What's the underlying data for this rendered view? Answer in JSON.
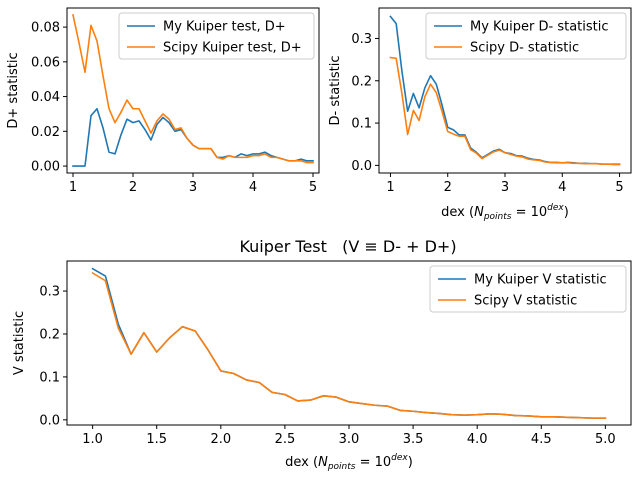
{
  "chart_data": [
    {
      "type": "line",
      "title": "",
      "xlabel": "",
      "ylabel": "D+ statistic",
      "xlim": [
        0.9,
        5.1
      ],
      "ylim": [
        -0.004,
        0.091
      ],
      "xticks": [
        1,
        2,
        3,
        4,
        5
      ],
      "xtick_labels": [
        "1",
        "2",
        "3",
        "4",
        "5"
      ],
      "yticks": [
        0.0,
        0.02,
        0.04,
        0.06,
        0.08
      ],
      "ytick_labels": [
        "0.00",
        "0.02",
        "0.04",
        "0.06",
        "0.08"
      ],
      "legend": "top-right",
      "grid": false,
      "x": [
        1.0,
        1.1,
        1.2,
        1.3,
        1.4,
        1.5,
        1.6,
        1.7,
        1.8,
        1.9,
        2.0,
        2.1,
        2.2,
        2.3,
        2.4,
        2.5,
        2.6,
        2.7,
        2.8,
        2.9,
        3.0,
        3.1,
        3.2,
        3.3,
        3.4,
        3.5,
        3.6,
        3.7,
        3.8,
        3.9,
        4.0,
        4.1,
        4.2,
        4.3,
        4.4,
        4.5,
        4.6,
        4.7,
        4.8,
        4.9,
        5.0
      ],
      "series": [
        {
          "name": "My Kuiper test, D+",
          "color": "#1f77b4",
          "values": [
            0.0,
            0.0,
            0.0,
            0.029,
            0.033,
            0.022,
            0.008,
            0.007,
            0.018,
            0.027,
            0.025,
            0.026,
            0.021,
            0.015,
            0.024,
            0.028,
            0.025,
            0.02,
            0.021,
            0.016,
            0.012,
            0.01,
            0.01,
            0.01,
            0.005,
            0.005,
            0.006,
            0.005,
            0.007,
            0.006,
            0.007,
            0.007,
            0.008,
            0.006,
            0.005,
            0.004,
            0.003,
            0.003,
            0.004,
            0.003,
            0.003
          ]
        },
        {
          "name": "Scipy Kuiper test, D+",
          "color": "#ff7f0e",
          "values": [
            0.087,
            0.071,
            0.054,
            0.081,
            0.072,
            0.052,
            0.033,
            0.025,
            0.031,
            0.038,
            0.033,
            0.033,
            0.026,
            0.019,
            0.026,
            0.03,
            0.027,
            0.021,
            0.022,
            0.016,
            0.012,
            0.01,
            0.01,
            0.01,
            0.005,
            0.004,
            0.006,
            0.005,
            0.005,
            0.005,
            0.006,
            0.006,
            0.007,
            0.005,
            0.005,
            0.004,
            0.003,
            0.003,
            0.003,
            0.002,
            0.002
          ]
        }
      ]
    },
    {
      "type": "line",
      "title": "",
      "xlabel": "dex (N_points = 10^dex)",
      "ylabel": "D- statistic",
      "xlim": [
        0.8,
        5.2
      ],
      "ylim": [
        -0.018,
        0.372
      ],
      "xticks": [
        1,
        2,
        3,
        4,
        5
      ],
      "xtick_labels": [
        "1",
        "2",
        "3",
        "4",
        "5"
      ],
      "yticks": [
        0.0,
        0.1,
        0.2,
        0.3
      ],
      "ytick_labels": [
        "0.0",
        "0.1",
        "0.2",
        "0.3"
      ],
      "legend": "top-right",
      "grid": false,
      "x": [
        1.0,
        1.1,
        1.2,
        1.3,
        1.4,
        1.5,
        1.6,
        1.7,
        1.8,
        1.9,
        2.0,
        2.1,
        2.2,
        2.3,
        2.4,
        2.5,
        2.6,
        2.7,
        2.8,
        2.9,
        3.0,
        3.1,
        3.2,
        3.3,
        3.4,
        3.5,
        3.6,
        3.7,
        3.8,
        3.9,
        4.0,
        4.1,
        4.2,
        4.3,
        4.4,
        4.5,
        4.6,
        4.7,
        4.8,
        4.9,
        5.0
      ],
      "series": [
        {
          "name": "My Kuiper D- statistic",
          "color": "#1f77b4",
          "values": [
            0.352,
            0.335,
            0.223,
            0.128,
            0.17,
            0.136,
            0.183,
            0.212,
            0.192,
            0.143,
            0.09,
            0.084,
            0.072,
            0.072,
            0.041,
            0.031,
            0.018,
            0.026,
            0.034,
            0.038,
            0.03,
            0.028,
            0.023,
            0.022,
            0.017,
            0.014,
            0.013,
            0.009,
            0.007,
            0.007,
            0.006,
            0.007,
            0.006,
            0.005,
            0.005,
            0.004,
            0.004,
            0.003,
            0.003,
            0.003,
            0.003
          ]
        },
        {
          "name": "Scipy D- statistic",
          "color": "#ff7f0e",
          "values": [
            0.255,
            0.253,
            0.17,
            0.073,
            0.13,
            0.106,
            0.162,
            0.192,
            0.172,
            0.128,
            0.08,
            0.074,
            0.069,
            0.069,
            0.037,
            0.029,
            0.016,
            0.024,
            0.032,
            0.036,
            0.03,
            0.026,
            0.022,
            0.02,
            0.015,
            0.013,
            0.012,
            0.008,
            0.007,
            0.006,
            0.006,
            0.006,
            0.005,
            0.005,
            0.004,
            0.004,
            0.004,
            0.003,
            0.003,
            0.002,
            0.002
          ]
        }
      ]
    },
    {
      "type": "line",
      "title": "Kuiper Test   (V ≡ D- + D+)",
      "xlabel": "dex (N_points = 10^dex)",
      "ylabel": "V statistic",
      "xlim": [
        0.8,
        5.2
      ],
      "ylim": [
        -0.012,
        0.37
      ],
      "xticks": [
        1.0,
        1.5,
        2.0,
        2.5,
        3.0,
        3.5,
        4.0,
        4.5,
        5.0
      ],
      "xtick_labels": [
        "1.0",
        "1.5",
        "2.0",
        "2.5",
        "3.0",
        "3.5",
        "4.0",
        "4.5",
        "5.0"
      ],
      "yticks": [
        0.0,
        0.1,
        0.2,
        0.3
      ],
      "ytick_labels": [
        "0.0",
        "0.1",
        "0.2",
        "0.3"
      ],
      "legend": "top-right",
      "grid": false,
      "x": [
        1.0,
        1.1,
        1.2,
        1.3,
        1.4,
        1.5,
        1.6,
        1.7,
        1.8,
        1.9,
        2.0,
        2.1,
        2.2,
        2.3,
        2.4,
        2.5,
        2.6,
        2.7,
        2.8,
        2.9,
        3.0,
        3.1,
        3.2,
        3.3,
        3.4,
        3.5,
        3.6,
        3.7,
        3.8,
        3.9,
        4.0,
        4.1,
        4.2,
        4.3,
        4.4,
        4.5,
        4.6,
        4.7,
        4.8,
        4.9,
        5.0
      ],
      "series": [
        {
          "name": "My Kuiper V statistic",
          "color": "#1f77b4",
          "values": [
            0.352,
            0.335,
            0.223,
            0.153,
            0.203,
            0.158,
            0.191,
            0.217,
            0.207,
            0.163,
            0.114,
            0.108,
            0.093,
            0.087,
            0.064,
            0.059,
            0.044,
            0.046,
            0.056,
            0.053,
            0.042,
            0.038,
            0.034,
            0.032,
            0.022,
            0.02,
            0.017,
            0.015,
            0.012,
            0.011,
            0.012,
            0.014,
            0.013,
            0.01,
            0.009,
            0.007,
            0.007,
            0.006,
            0.005,
            0.004,
            0.004
          ]
        },
        {
          "name": "Scipy V statistic",
          "color": "#ff7f0e",
          "values": [
            0.342,
            0.324,
            0.214,
            0.153,
            0.203,
            0.158,
            0.191,
            0.217,
            0.207,
            0.163,
            0.114,
            0.108,
            0.093,
            0.087,
            0.064,
            0.059,
            0.044,
            0.046,
            0.056,
            0.053,
            0.042,
            0.038,
            0.034,
            0.032,
            0.022,
            0.02,
            0.017,
            0.015,
            0.012,
            0.011,
            0.012,
            0.014,
            0.013,
            0.01,
            0.009,
            0.007,
            0.007,
            0.006,
            0.005,
            0.004,
            0.004
          ]
        }
      ]
    }
  ]
}
